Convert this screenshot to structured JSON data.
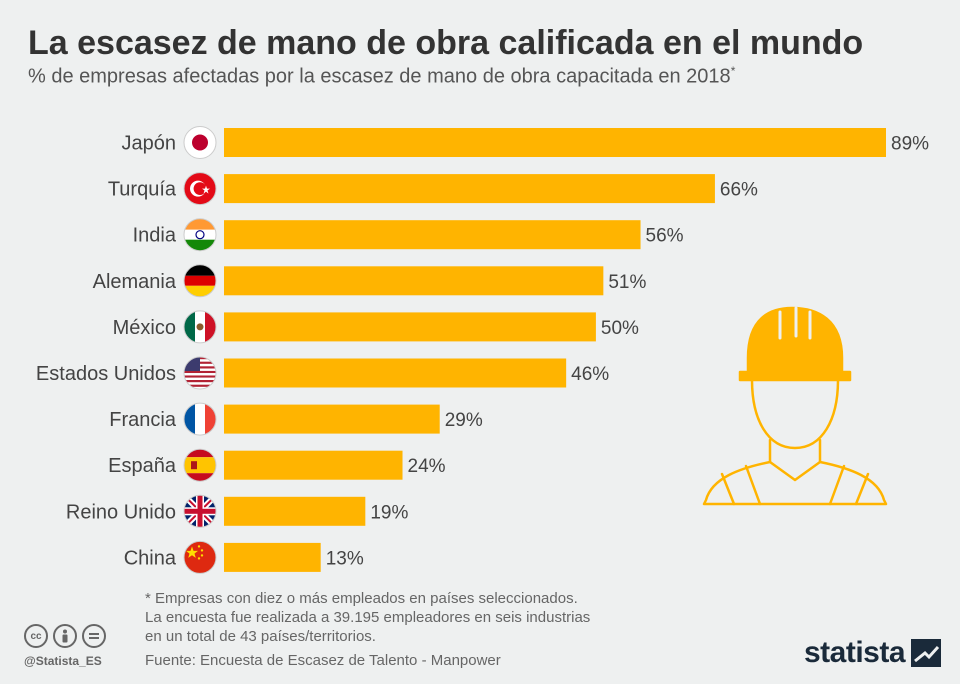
{
  "header": {
    "title": "La escasez de mano de obra calificada en el mundo",
    "subtitle": "% de empresas afectadas por la escasez de mano de obra capacitada en 2018",
    "subtitle_mark": "*"
  },
  "chart_data": {
    "type": "bar",
    "orientation": "horizontal",
    "categories": [
      "Japón",
      "Turquía",
      "India",
      "Alemania",
      "México",
      "Estados Unidos",
      "Francia",
      "España",
      "Reino Unido",
      "China"
    ],
    "values": [
      89,
      66,
      56,
      51,
      50,
      46,
      29,
      24,
      19,
      13
    ],
    "value_labels": [
      "89%",
      "66%",
      "56%",
      "51%",
      "50%",
      "46%",
      "29%",
      "24%",
      "19%",
      "13%"
    ],
    "title": "La escasez de mano de obra calificada en el mundo",
    "subtitle": "% de empresas afectadas por la escasez de mano de obra capacitada en 2018*",
    "xlim": [
      0,
      89
    ],
    "grid": false,
    "legend": "none",
    "bar_color": "#FFB400"
  },
  "flags": [
    "japan-flag-icon",
    "turkey-flag-icon",
    "india-flag-icon",
    "germany-flag-icon",
    "mexico-flag-icon",
    "usa-flag-icon",
    "france-flag-icon",
    "spain-flag-icon",
    "uk-flag-icon",
    "china-flag-icon"
  ],
  "illustration": "construction-worker-helmet-icon",
  "footer": {
    "notes": [
      "* Empresas con diez o más empleados en países seleccionados.",
      "La encuesta fue realizada a 39.195 empleadores en seis industrias",
      "en un total de 43 países/territorios."
    ],
    "source": "Fuente: Encuesta de Escasez de Talento - Manpower",
    "handle": "@Statista_ES",
    "brand": "statista",
    "license_icons": [
      "cc-icon",
      "by-icon",
      "nd-icon"
    ]
  },
  "colors": {
    "background": "#eef0f0",
    "bar": "#FFB400",
    "text": "#333333",
    "brand": "#1a2a3a"
  }
}
